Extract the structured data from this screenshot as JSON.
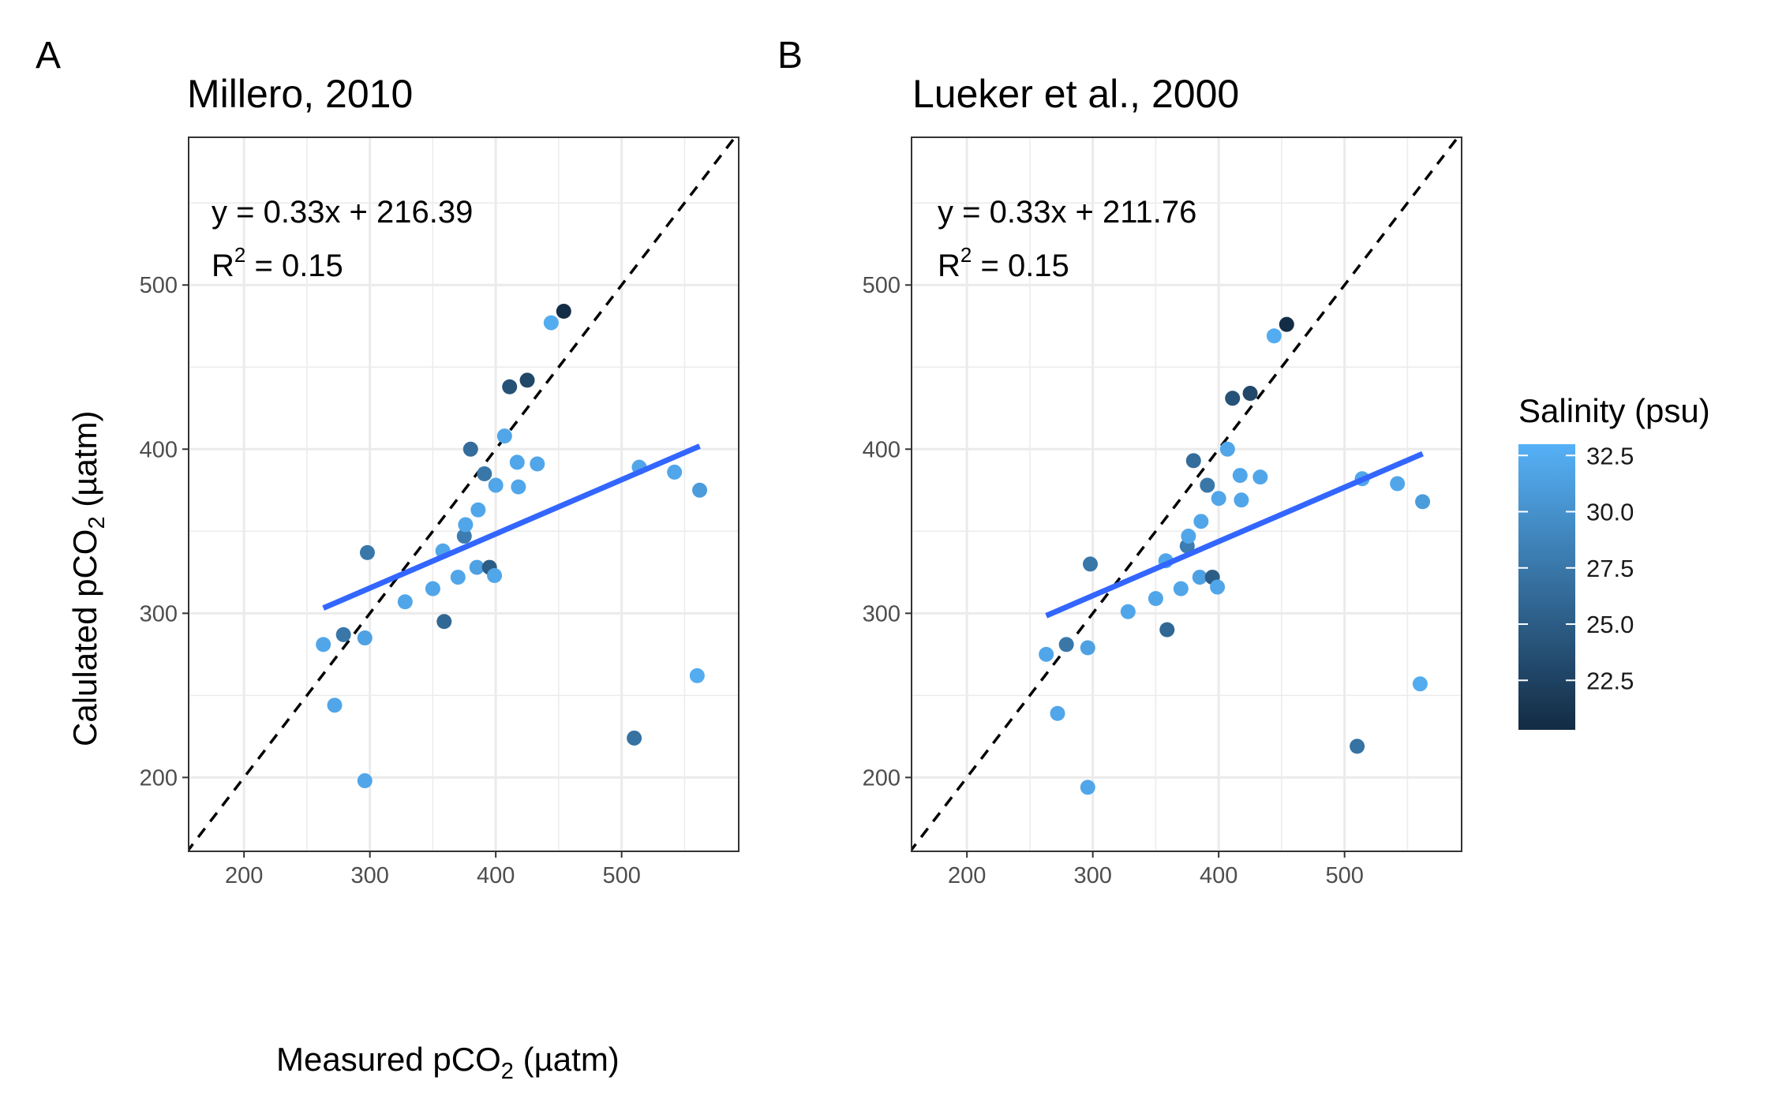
{
  "legend": {
    "title": "Salinity (psu)",
    "breaks": [
      "32.5",
      "30.0",
      "27.5",
      "25.0",
      "22.5"
    ],
    "break_values": [
      32.5,
      30.0,
      27.5,
      25.0,
      22.5
    ],
    "range": [
      20.3,
      33.0
    ],
    "color_low": "#132B43",
    "color_high": "#56B1F7"
  },
  "colors": {
    "fit_line": "#3366FF",
    "identity_line": "#000000",
    "grid": "#ebebeb",
    "panel_border": "#333333"
  },
  "shared_axes": {
    "xlabel_base": "Measured pCO",
    "xlabel_sub": "2",
    "xlabel_unit": " (µatm)",
    "ylabel_base": "Calulated pCO",
    "ylabel_sub": "2",
    "ylabel_unit": " (µatm)",
    "x_ticks": [
      "200",
      "300",
      "400",
      "500"
    ],
    "y_ticks": [
      "200",
      "300",
      "400",
      "500"
    ]
  },
  "chart_data": [
    {
      "type": "scatter",
      "panel_letter": "A",
      "title": "Millero, 2010",
      "equation": "y = 0.33x + 216.39",
      "r2_label": "R",
      "r2_sup": "2",
      "r2_value": " = 0.15",
      "xlim": [
        156,
        593
      ],
      "ylim": [
        155,
        590
      ],
      "x_ticks": [
        200,
        300,
        400,
        500
      ],
      "y_ticks": [
        200,
        300,
        400,
        500
      ],
      "grid": true,
      "identity_line": true,
      "fit": {
        "slope": 0.33,
        "intercept": 216.39,
        "x_range": [
          263,
          562
        ]
      },
      "points": [
        {
          "x": 263,
          "y": 281,
          "salinity": 32.0
        },
        {
          "x": 272,
          "y": 244,
          "salinity": 32.0
        },
        {
          "x": 279,
          "y": 287,
          "salinity": 27.5
        },
        {
          "x": 296,
          "y": 285,
          "salinity": 31.5
        },
        {
          "x": 296,
          "y": 198,
          "salinity": 32.0
        },
        {
          "x": 298,
          "y": 337,
          "salinity": 27.5
        },
        {
          "x": 328,
          "y": 307,
          "salinity": 32.0
        },
        {
          "x": 350,
          "y": 315,
          "salinity": 32.0
        },
        {
          "x": 358,
          "y": 338,
          "salinity": 32.0
        },
        {
          "x": 359,
          "y": 295,
          "salinity": 26.0
        },
        {
          "x": 370,
          "y": 322,
          "salinity": 32.0
        },
        {
          "x": 375,
          "y": 347,
          "salinity": 28.0
        },
        {
          "x": 376,
          "y": 354,
          "salinity": 32.0
        },
        {
          "x": 380,
          "y": 400,
          "salinity": 26.5
        },
        {
          "x": 385,
          "y": 328,
          "salinity": 31.5
        },
        {
          "x": 386,
          "y": 363,
          "salinity": 32.0
        },
        {
          "x": 391,
          "y": 385,
          "salinity": 27.5
        },
        {
          "x": 395,
          "y": 328,
          "salinity": 25.0
        },
        {
          "x": 399,
          "y": 323,
          "salinity": 32.0
        },
        {
          "x": 400,
          "y": 378,
          "salinity": 32.0
        },
        {
          "x": 407,
          "y": 408,
          "salinity": 32.0
        },
        {
          "x": 411,
          "y": 438,
          "salinity": 24.0
        },
        {
          "x": 417,
          "y": 392,
          "salinity": 32.0
        },
        {
          "x": 418,
          "y": 377,
          "salinity": 32.0
        },
        {
          "x": 425,
          "y": 442,
          "salinity": 23.0
        },
        {
          "x": 433,
          "y": 391,
          "salinity": 32.0
        },
        {
          "x": 444,
          "y": 477,
          "salinity": 32.5
        },
        {
          "x": 454,
          "y": 484,
          "salinity": 20.5
        },
        {
          "x": 510,
          "y": 224,
          "salinity": 27.0
        },
        {
          "x": 514,
          "y": 389,
          "salinity": 32.0
        },
        {
          "x": 542,
          "y": 386,
          "salinity": 32.0
        },
        {
          "x": 560,
          "y": 262,
          "salinity": 32.5
        },
        {
          "x": 562,
          "y": 375,
          "salinity": 31.0
        }
      ]
    },
    {
      "type": "scatter",
      "panel_letter": "B",
      "title": "Lueker et al., 2000",
      "equation": "y = 0.33x + 211.76",
      "r2_label": "R",
      "r2_sup": "2",
      "r2_value": " = 0.15",
      "xlim": [
        156,
        593
      ],
      "ylim": [
        155,
        590
      ],
      "x_ticks": [
        200,
        300,
        400,
        500
      ],
      "y_ticks": [
        200,
        300,
        400,
        500
      ],
      "grid": true,
      "identity_line": true,
      "fit": {
        "slope": 0.33,
        "intercept": 211.76,
        "x_range": [
          263,
          562
        ]
      },
      "points": [
        {
          "x": 263,
          "y": 275,
          "salinity": 32.0
        },
        {
          "x": 272,
          "y": 239,
          "salinity": 32.0
        },
        {
          "x": 279,
          "y": 281,
          "salinity": 27.5
        },
        {
          "x": 296,
          "y": 279,
          "salinity": 31.5
        },
        {
          "x": 296,
          "y": 194,
          "salinity": 32.0
        },
        {
          "x": 298,
          "y": 330,
          "salinity": 27.5
        },
        {
          "x": 328,
          "y": 301,
          "salinity": 32.0
        },
        {
          "x": 350,
          "y": 309,
          "salinity": 32.0
        },
        {
          "x": 358,
          "y": 332,
          "salinity": 32.0
        },
        {
          "x": 359,
          "y": 290,
          "salinity": 26.0
        },
        {
          "x": 370,
          "y": 315,
          "salinity": 32.0
        },
        {
          "x": 375,
          "y": 341,
          "salinity": 28.0
        },
        {
          "x": 376,
          "y": 347,
          "salinity": 32.0
        },
        {
          "x": 380,
          "y": 393,
          "salinity": 26.5
        },
        {
          "x": 385,
          "y": 322,
          "salinity": 31.5
        },
        {
          "x": 386,
          "y": 356,
          "salinity": 32.0
        },
        {
          "x": 391,
          "y": 378,
          "salinity": 27.5
        },
        {
          "x": 395,
          "y": 322,
          "salinity": 25.0
        },
        {
          "x": 399,
          "y": 316,
          "salinity": 32.0
        },
        {
          "x": 400,
          "y": 370,
          "salinity": 32.0
        },
        {
          "x": 407,
          "y": 400,
          "salinity": 32.0
        },
        {
          "x": 411,
          "y": 431,
          "salinity": 24.0
        },
        {
          "x": 417,
          "y": 384,
          "salinity": 32.0
        },
        {
          "x": 418,
          "y": 369,
          "salinity": 32.0
        },
        {
          "x": 425,
          "y": 434,
          "salinity": 23.0
        },
        {
          "x": 433,
          "y": 383,
          "salinity": 32.0
        },
        {
          "x": 444,
          "y": 469,
          "salinity": 32.5
        },
        {
          "x": 454,
          "y": 476,
          "salinity": 20.5
        },
        {
          "x": 510,
          "y": 219,
          "salinity": 27.0
        },
        {
          "x": 514,
          "y": 382,
          "salinity": 32.0
        },
        {
          "x": 542,
          "y": 379,
          "salinity": 32.0
        },
        {
          "x": 560,
          "y": 257,
          "salinity": 32.5
        },
        {
          "x": 562,
          "y": 368,
          "salinity": 31.0
        }
      ]
    }
  ]
}
